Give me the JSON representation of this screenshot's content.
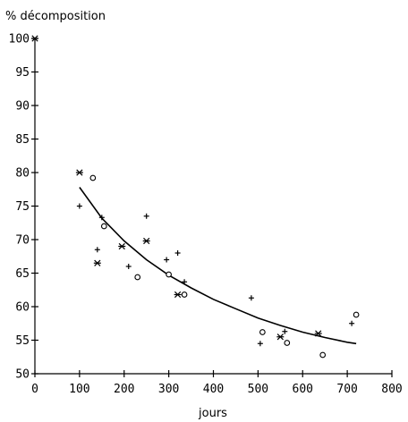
{
  "chart_data": {
    "type": "scatter",
    "ylabel": "% décomposition",
    "xlabel": "jours",
    "xlim": [
      0,
      800
    ],
    "ylim": [
      50,
      100
    ],
    "x_ticks": [
      "0",
      "100",
      "200",
      "300",
      "400",
      "500",
      "600",
      "700",
      "800"
    ],
    "y_ticks": [
      "50",
      "55",
      "60",
      "65",
      "70",
      "75",
      "80",
      "85",
      "90",
      "95",
      "100"
    ],
    "grid": false,
    "series": [
      {
        "marker": "plus",
        "points": [
          [
            100,
            75.0
          ],
          [
            140,
            68.5
          ],
          [
            150,
            73.3
          ],
          [
            210,
            66.0
          ],
          [
            250,
            73.5
          ],
          [
            295,
            67.0
          ],
          [
            320,
            68.0
          ],
          [
            335,
            63.7
          ],
          [
            485,
            61.3
          ],
          [
            505,
            54.5
          ],
          [
            560,
            56.3
          ],
          [
            710,
            57.5
          ]
        ]
      },
      {
        "marker": "asterisk",
        "points": [
          [
            0,
            100.0
          ],
          [
            100,
            80.0
          ],
          [
            140,
            66.5
          ],
          [
            195,
            69.0
          ],
          [
            250,
            69.8
          ],
          [
            320,
            61.8
          ],
          [
            550,
            55.5
          ],
          [
            635,
            56.0
          ]
        ]
      },
      {
        "marker": "circle",
        "points": [
          [
            130,
            79.2
          ],
          [
            155,
            72.0
          ],
          [
            230,
            64.4
          ],
          [
            300,
            64.8
          ],
          [
            335,
            61.8
          ],
          [
            510,
            56.2
          ],
          [
            565,
            54.6
          ],
          [
            645,
            52.8
          ],
          [
            720,
            58.8
          ]
        ]
      },
      {
        "type": "line",
        "points": [
          [
            100,
            77.8
          ],
          [
            150,
            73.2
          ],
          [
            200,
            69.8
          ],
          [
            250,
            67.0
          ],
          [
            300,
            64.7
          ],
          [
            350,
            62.8
          ],
          [
            400,
            61.1
          ],
          [
            450,
            59.7
          ],
          [
            500,
            58.3
          ],
          [
            550,
            57.2
          ],
          [
            600,
            56.2
          ],
          [
            650,
            55.4
          ],
          [
            700,
            54.7
          ],
          [
            720,
            54.5
          ]
        ]
      }
    ]
  }
}
